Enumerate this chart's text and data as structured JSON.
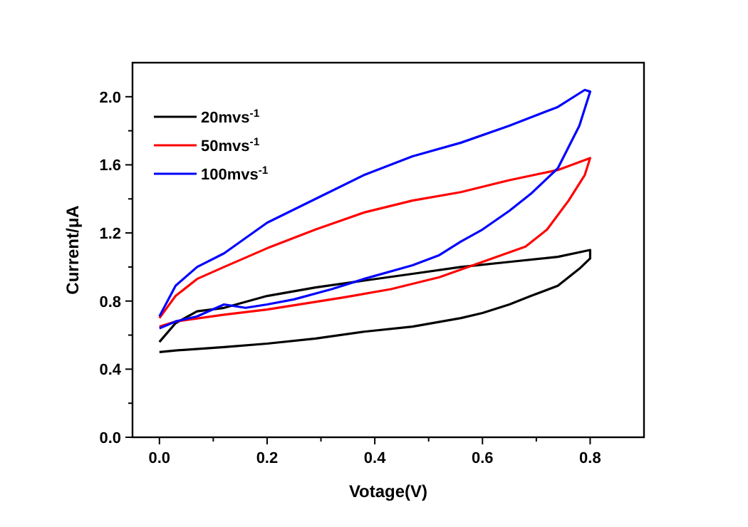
{
  "chart_data": {
    "type": "line",
    "xlabel": "Votage(V)",
    "ylabel": "Current/μA",
    "xlim": [
      -0.05,
      0.9
    ],
    "ylim": [
      0,
      2.2
    ],
    "xticks": [
      {
        "value": 0,
        "label": "0.0"
      },
      {
        "value": 0.1,
        "label": null
      },
      {
        "value": 0.2,
        "label": "0.2"
      },
      {
        "value": 0.3,
        "label": null
      },
      {
        "value": 0.4,
        "label": "0.4"
      },
      {
        "value": 0.5,
        "label": null
      },
      {
        "value": 0.6,
        "label": "0.6"
      },
      {
        "value": 0.7,
        "label": null
      },
      {
        "value": 0.8,
        "label": "0.8"
      }
    ],
    "yticks": [
      {
        "value": 0,
        "label": "0.0"
      },
      {
        "value": 0.2,
        "label": null
      },
      {
        "value": 0.4,
        "label": "0.4"
      },
      {
        "value": 0.6,
        "label": null
      },
      {
        "value": 0.8,
        "label": "0.8"
      },
      {
        "value": 1.0,
        "label": null
      },
      {
        "value": 1.2,
        "label": "1.2"
      },
      {
        "value": 1.4,
        "label": null
      },
      {
        "value": 1.6,
        "label": "1.6"
      },
      {
        "value": 1.8,
        "label": null
      },
      {
        "value": 2.0,
        "label": "2.0"
      }
    ],
    "legend": "top left",
    "grid": false,
    "marker": "none",
    "line_style": "solid",
    "series": [
      {
        "name": "20mvs$^{-1}$",
        "color": "#000000",
        "x": [
          0,
          0.03,
          0.07,
          0.12,
          0.2,
          0.29,
          0.38,
          0.47,
          0.56,
          0.65,
          0.74,
          0.8,
          0.8,
          0.78,
          0.74,
          0.69,
          0.65,
          0.6,
          0.56,
          0.47,
          0.38,
          0.29,
          0.2,
          0.12,
          0.03,
          0
        ],
        "values": [
          0.56,
          0.67,
          0.74,
          0.76,
          0.83,
          0.88,
          0.92,
          0.96,
          1.0,
          1.03,
          1.06,
          1.1,
          1.05,
          0.99,
          0.89,
          0.83,
          0.78,
          0.73,
          0.7,
          0.65,
          0.62,
          0.58,
          0.55,
          0.53,
          0.51,
          0.5
        ]
      },
      {
        "name": "50mvs$^{-1}$",
        "color": "#ff0000",
        "x": [
          0,
          0.03,
          0.07,
          0.12,
          0.2,
          0.29,
          0.38,
          0.47,
          0.56,
          0.65,
          0.74,
          0.8,
          0.79,
          0.76,
          0.72,
          0.68,
          0.6,
          0.52,
          0.43,
          0.34,
          0.2,
          0.12,
          0.03,
          0
        ],
        "values": [
          0.7,
          0.83,
          0.93,
          1.0,
          1.11,
          1.22,
          1.32,
          1.39,
          1.44,
          1.51,
          1.57,
          1.64,
          1.54,
          1.39,
          1.22,
          1.12,
          1.03,
          0.94,
          0.87,
          0.82,
          0.75,
          0.72,
          0.68,
          0.65
        ]
      },
      {
        "name": "100mvs$^{-1}$",
        "color": "#0000ff",
        "x": [
          0,
          0.03,
          0.07,
          0.12,
          0.2,
          0.29,
          0.38,
          0.47,
          0.56,
          0.65,
          0.74,
          0.79,
          0.8,
          0.78,
          0.74,
          0.69,
          0.65,
          0.6,
          0.56,
          0.52,
          0.47,
          0.38,
          0.32,
          0.25,
          0.2,
          0.16,
          0.12,
          0.07,
          0.03,
          0
        ],
        "values": [
          0.71,
          0.89,
          1.0,
          1.08,
          1.26,
          1.4,
          1.54,
          1.65,
          1.73,
          1.83,
          1.94,
          2.04,
          2.03,
          1.83,
          1.58,
          1.43,
          1.33,
          1.22,
          1.15,
          1.07,
          1.01,
          0.93,
          0.87,
          0.81,
          0.78,
          0.76,
          0.78,
          0.71,
          0.68,
          0.64
        ]
      }
    ]
  }
}
